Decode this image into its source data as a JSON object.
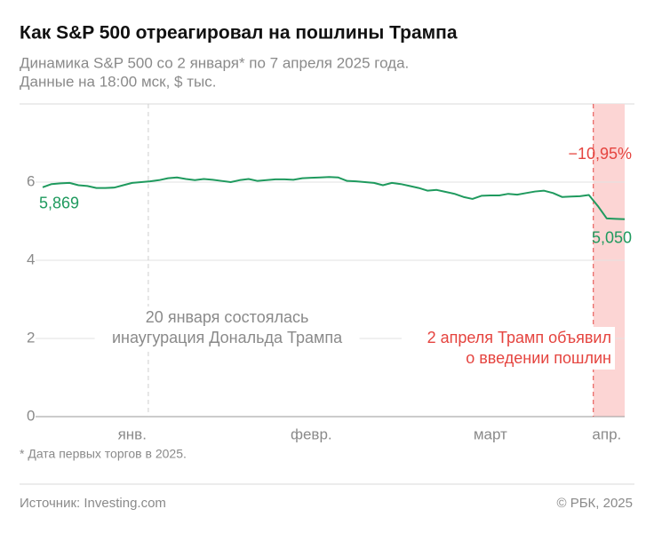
{
  "chart_data": {
    "type": "line",
    "title": "Как S&P 500 отреагировал на пошлины Трампа",
    "subtitle": [
      "Динамика S&P 500 со 2 января* по 7 апреля 2025 года.",
      "Данные на 18:00 мск, $ тыс."
    ],
    "categories": [
      null,
      null,
      null,
      null,
      null,
      null,
      null,
      null,
      null,
      null,
      "янв.",
      null,
      null,
      null,
      null,
      null,
      null,
      null,
      null,
      null,
      null,
      null,
      null,
      null,
      null,
      null,
      null,
      null,
      null,
      null,
      "февр.",
      null,
      null,
      null,
      null,
      null,
      null,
      null,
      null,
      null,
      null,
      null,
      null,
      null,
      null,
      null,
      null,
      null,
      null,
      null,
      "март",
      null,
      null,
      null,
      null,
      null,
      null,
      null,
      null,
      null,
      null,
      null,
      null,
      "апр.",
      null,
      null
    ],
    "series": [
      {
        "name": "S&P 500",
        "color": "#1f9a5e",
        "values": [
          5.869,
          5.95,
          5.97,
          5.98,
          5.92,
          5.9,
          5.85,
          5.85,
          5.86,
          5.92,
          5.98,
          6.0,
          6.02,
          6.05,
          6.1,
          6.12,
          6.08,
          6.05,
          6.08,
          6.06,
          6.03,
          6.0,
          6.05,
          6.08,
          6.03,
          6.05,
          6.07,
          6.07,
          6.06,
          6.1,
          6.11,
          6.12,
          6.13,
          6.12,
          6.03,
          6.02,
          6.0,
          5.98,
          5.92,
          5.98,
          5.95,
          5.9,
          5.85,
          5.78,
          5.8,
          5.75,
          5.7,
          5.62,
          5.57,
          5.65,
          5.66,
          5.66,
          5.7,
          5.68,
          5.72,
          5.76,
          5.78,
          5.72,
          5.62,
          5.63,
          5.64,
          5.67,
          5.39,
          5.07,
          5.06,
          5.05
        ],
        "value_labels": [
          "5,869",
          null,
          null,
          null,
          null,
          null,
          null,
          null,
          null,
          null,
          null,
          null,
          null,
          null,
          null,
          null,
          null,
          null,
          null,
          null,
          null,
          null,
          null,
          null,
          null,
          null,
          null,
          null,
          null,
          null,
          null,
          null,
          null,
          null,
          null,
          null,
          null,
          null,
          null,
          null,
          null,
          null,
          null,
          null,
          null,
          null,
          null,
          null,
          null,
          null,
          null,
          null,
          null,
          null,
          null,
          null,
          null,
          null,
          null,
          null,
          null,
          null,
          null,
          null,
          null,
          "5,050"
        ]
      }
    ],
    "ylim": [
      0,
      8
    ],
    "yticks": [
      0,
      2,
      4,
      6
    ],
    "grid": true,
    "annotations": {
      "inauguration": [
        "20 января состоялась",
        "инаугурация Дональда Трампа"
      ],
      "tariffs": [
        "2 апреля Трамп объявил",
        "о введении пошлин"
      ],
      "change": "−10,95%"
    },
    "footnote": "* Дата первых торгов в 2025.",
    "source": "Источник: Investing.com",
    "copyright": "© РБК, 2025"
  }
}
